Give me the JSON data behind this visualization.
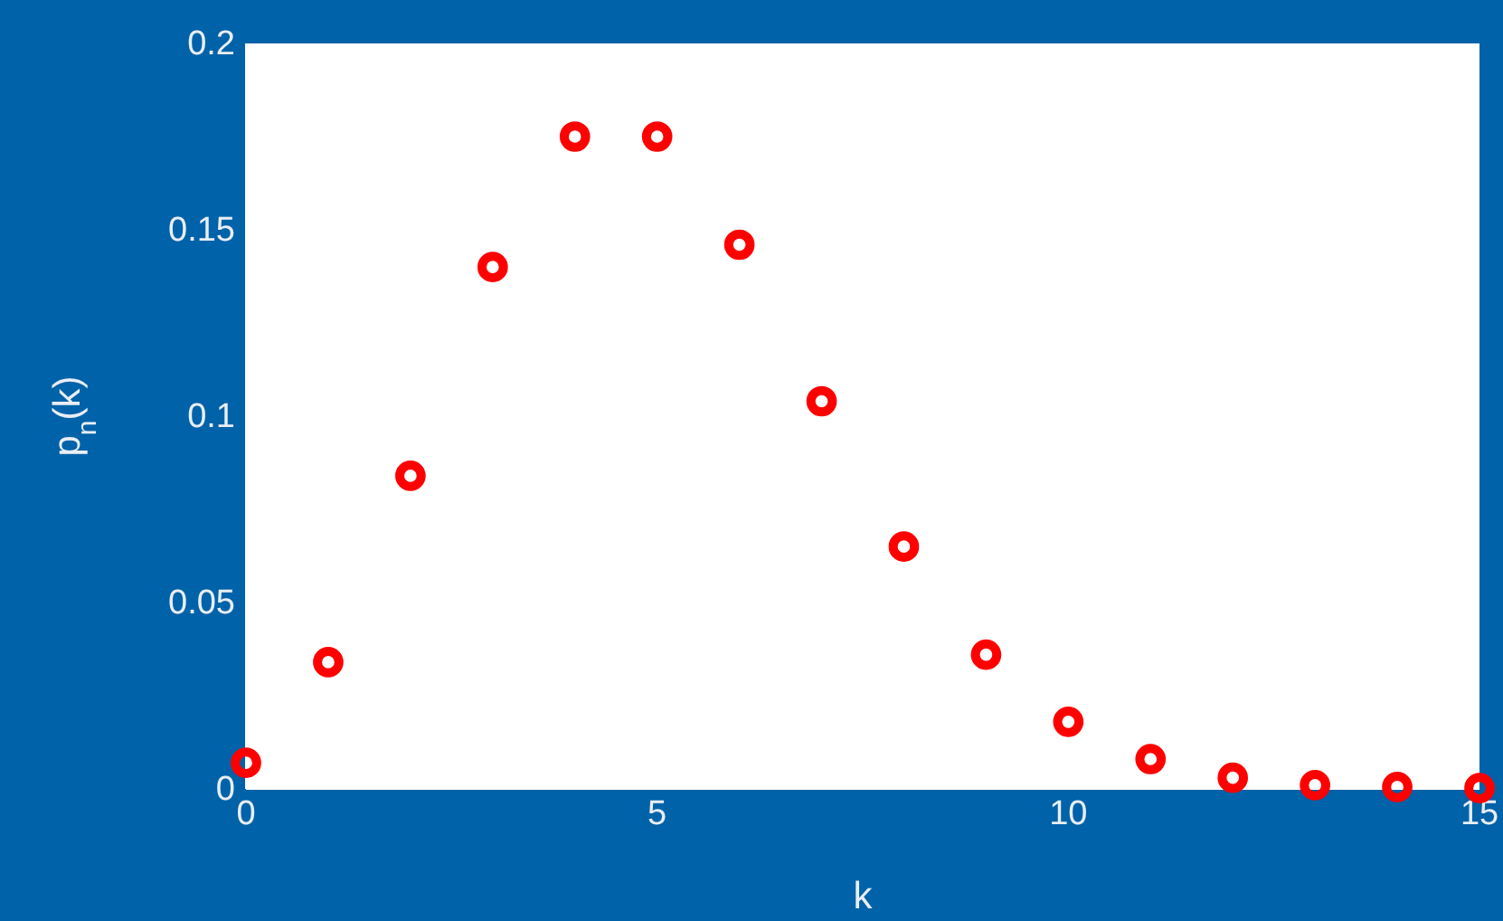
{
  "chart_data": {
    "type": "scatter",
    "xlabel": "k",
    "ylabel": "p$_{n}$(k)",
    "x": [
      0,
      1,
      2,
      3,
      4,
      5,
      6,
      7,
      8,
      9,
      10,
      11,
      12,
      13,
      14,
      15
    ],
    "series": [
      {
        "color": "#ff0000",
        "values": [
          0.007,
          0.034,
          0.084,
          0.14,
          0.175,
          0.175,
          0.146,
          0.104,
          0.065,
          0.036,
          0.018,
          0.008,
          0.003,
          0.001,
          0.0005,
          0.0002
        ]
      }
    ],
    "xlim": [
      0,
      15
    ],
    "ylim": [
      0,
      0.2
    ],
    "xticks": [
      0,
      5,
      10,
      15
    ],
    "yticks": [
      0,
      0.05,
      0.1,
      0.15,
      0.2
    ],
    "marker": "circle",
    "grid": false
  }
}
